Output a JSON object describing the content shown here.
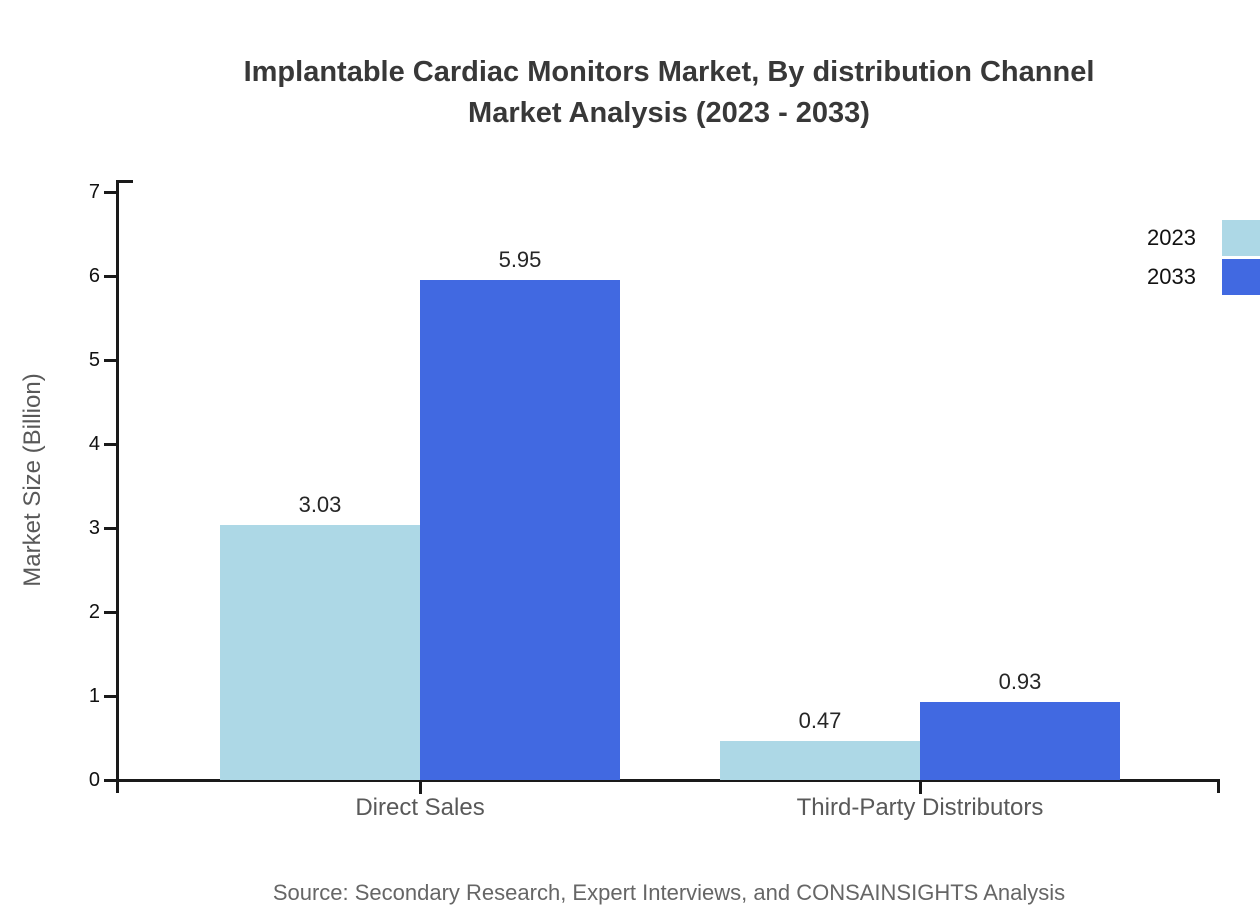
{
  "chart_data": {
    "type": "bar",
    "title_line1": "Implantable Cardiac Monitors Market, By distribution Channel",
    "title_line2": "Market Analysis (2023 - 2033)",
    "ylabel": "Market Size (Billion)",
    "ylim": [
      0,
      7
    ],
    "yticks": [
      0,
      1,
      2,
      3,
      4,
      5,
      6,
      7
    ],
    "categories": [
      "Direct Sales",
      "Third-Party Distributors"
    ],
    "series": [
      {
        "name": "2023",
        "color": "#add8e6",
        "values": [
          3.03,
          0.47
        ]
      },
      {
        "name": "2033",
        "color": "#4169e1",
        "values": [
          5.95,
          0.93
        ]
      }
    ],
    "value_label_format": "2-decimals",
    "legend_position": "top-right",
    "grid": false,
    "axis_color": "#1a1a1a"
  },
  "footer": {
    "source": "Source: Secondary Research, Expert Interviews, and CONSAINSIGHTS Analysis"
  }
}
